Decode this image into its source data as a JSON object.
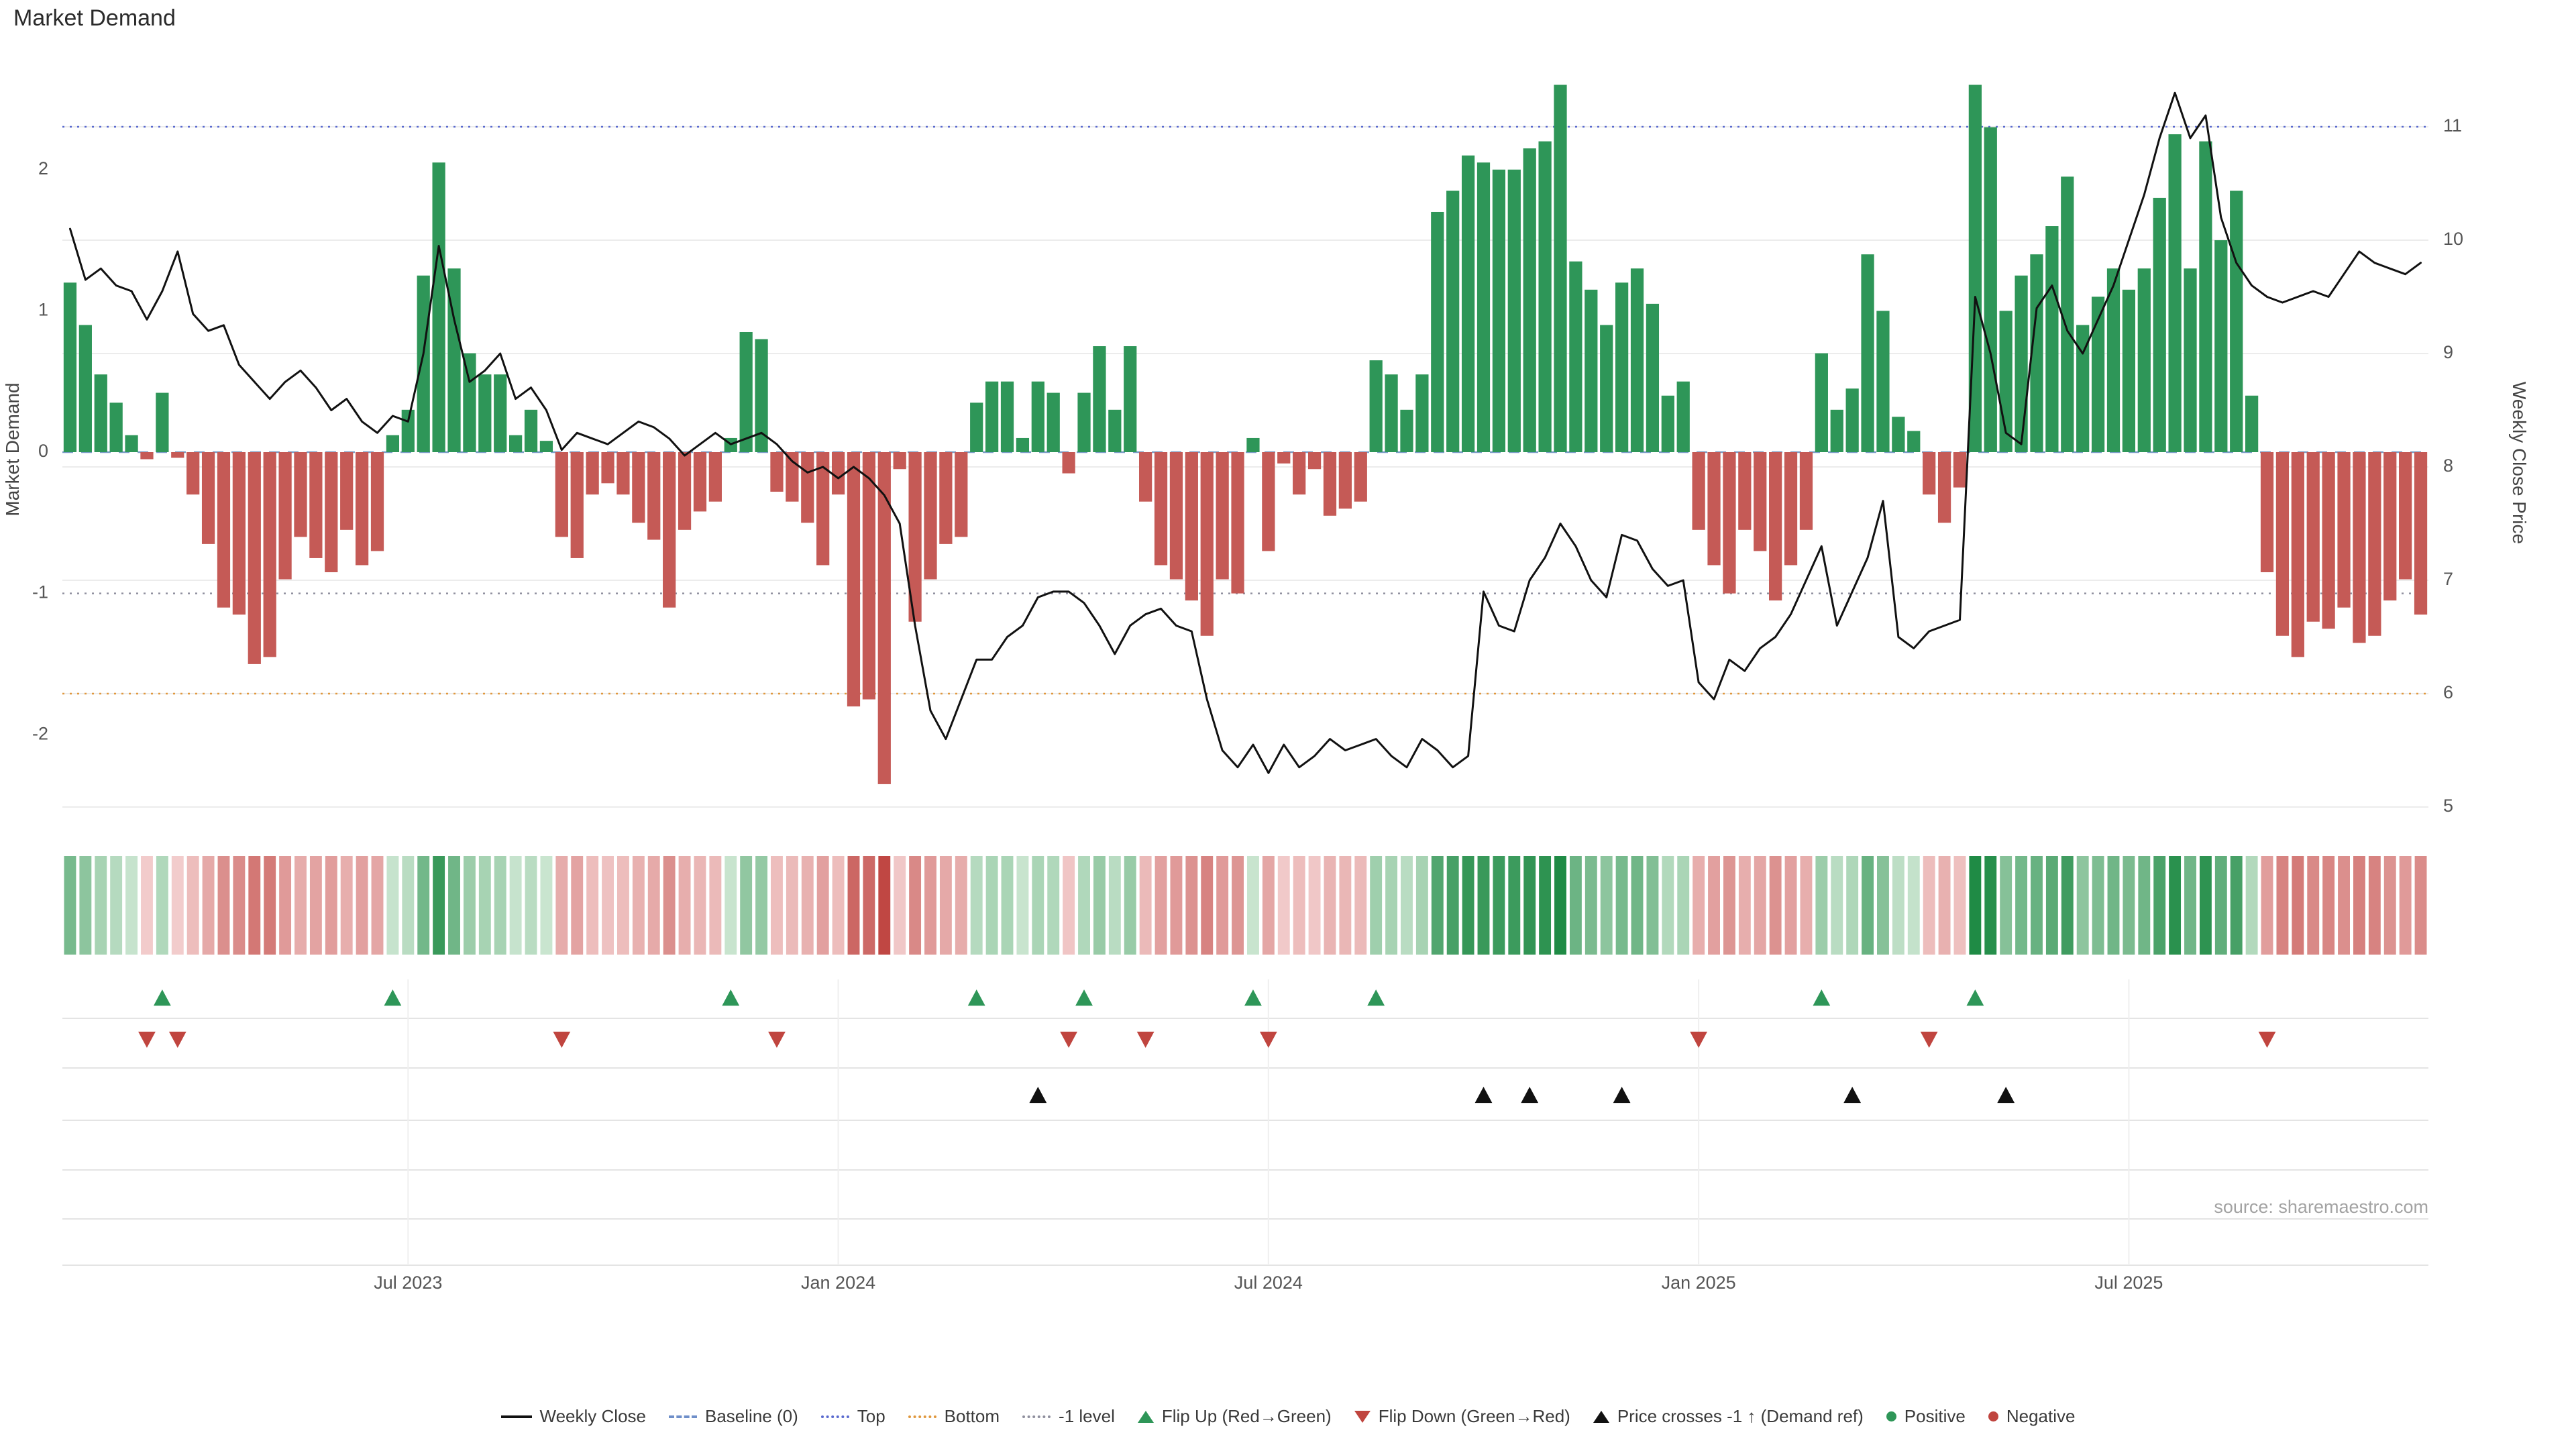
{
  "title": "Market Demand",
  "source": "source: sharemaestro.com",
  "axes": {
    "left_label": "Market Demand",
    "right_label": "Weekly Close Price",
    "left_ticks": [
      2,
      1,
      0,
      -1,
      -2
    ],
    "right_ticks": [
      11,
      10,
      9,
      8,
      7,
      6,
      5
    ],
    "x_ticks": [
      {
        "label": "Jul 2023",
        "index": 22.5
      },
      {
        "label": "Jan 2024",
        "index": 50.5
      },
      {
        "label": "Jul 2024",
        "index": 78.5
      },
      {
        "label": "Jan 2025",
        "index": 106.5
      },
      {
        "label": "Jul 2025",
        "index": 134.5
      }
    ]
  },
  "colors": {
    "positive": "#2e9658",
    "positive_dark": "#1f8b45",
    "positive_light": "#cfe8d4",
    "negative": "#c55a56",
    "negative_dark": "#bf4440",
    "negative_light": "#f3cece",
    "price_line": "#111111",
    "baseline": "#7a9cc6",
    "top_line": "#5a6acf",
    "bottom_line": "#e0983e",
    "minus_one_line": "#8f8f9e",
    "grid": "#ececec"
  },
  "chart_data": {
    "type": "bar",
    "title": "Market Demand",
    "x_unit": "weekly",
    "left_axis_range": [
      -2.75,
      2.8
    ],
    "right_axis_range": [
      4.7,
      11.6
    ],
    "series": [
      {
        "name": "Market Demand",
        "type": "bar",
        "axis": "left",
        "values": [
          1.2,
          0.9,
          0.55,
          0.35,
          0.12,
          -0.05,
          0.42,
          -0.04,
          -0.3,
          -0.65,
          -1.1,
          -1.15,
          -1.5,
          -1.45,
          -0.9,
          -0.6,
          -0.75,
          -0.85,
          -0.55,
          -0.8,
          -0.7,
          0.12,
          0.3,
          1.25,
          2.05,
          1.3,
          0.7,
          0.55,
          0.55,
          0.12,
          0.3,
          0.08,
          -0.6,
          -0.75,
          -0.3,
          -0.22,
          -0.3,
          -0.5,
          -0.62,
          -1.1,
          -0.55,
          -0.42,
          -0.35,
          0.1,
          0.85,
          0.8,
          -0.28,
          -0.35,
          -0.5,
          -0.8,
          -0.3,
          -1.8,
          -1.75,
          -2.35,
          -0.12,
          -1.2,
          -0.9,
          -0.65,
          -0.6,
          0.35,
          0.5,
          0.5,
          0.1,
          0.5,
          0.42,
          -0.15,
          0.42,
          0.75,
          0.3,
          0.75,
          -0.35,
          -0.8,
          -0.9,
          -1.05,
          -1.3,
          -0.9,
          -1.0,
          0.1,
          -0.7,
          -0.08,
          -0.3,
          -0.12,
          -0.45,
          -0.4,
          -0.35,
          0.65,
          0.55,
          0.3,
          0.55,
          1.7,
          1.85,
          2.1,
          2.05,
          2.0,
          2.0,
          2.15,
          2.2,
          2.6,
          1.35,
          1.15,
          0.9,
          1.2,
          1.3,
          1.05,
          0.4,
          0.5,
          -0.55,
          -0.8,
          -1.0,
          -0.55,
          -0.7,
          -1.05,
          -0.8,
          -0.55,
          0.7,
          0.3,
          0.45,
          1.4,
          1.0,
          0.25,
          0.15,
          -0.3,
          -0.5,
          -0.25,
          2.6,
          2.3,
          1.0,
          1.25,
          1.4,
          1.6,
          1.95,
          0.9,
          1.1,
          1.3,
          1.15,
          1.3,
          1.8,
          2.25,
          1.3,
          2.2,
          1.5,
          1.85,
          0.4,
          -0.85,
          -1.3,
          -1.45,
          -1.2,
          -1.25,
          -1.1,
          -1.35,
          -1.3,
          -1.05,
          -0.9,
          -1.15
        ]
      },
      {
        "name": "Weekly Close",
        "type": "line",
        "axis": "right",
        "values": [
          10.1,
          9.65,
          9.75,
          9.6,
          9.55,
          9.3,
          9.55,
          9.9,
          9.35,
          9.2,
          9.25,
          8.9,
          8.75,
          8.6,
          8.75,
          8.85,
          8.7,
          8.5,
          8.6,
          8.4,
          8.3,
          8.45,
          8.4,
          9.0,
          9.95,
          9.3,
          8.75,
          8.85,
          9.0,
          8.6,
          8.7,
          8.5,
          8.15,
          8.3,
          8.25,
          8.2,
          8.3,
          8.4,
          8.35,
          8.25,
          8.1,
          8.2,
          8.3,
          8.2,
          8.25,
          8.3,
          8.2,
          8.05,
          7.95,
          8.0,
          7.9,
          8.0,
          7.9,
          7.75,
          7.5,
          6.6,
          5.85,
          5.6,
          5.95,
          6.3,
          6.3,
          6.5,
          6.6,
          6.85,
          6.9,
          6.9,
          6.8,
          6.6,
          6.35,
          6.6,
          6.7,
          6.75,
          6.6,
          6.55,
          5.95,
          5.5,
          5.35,
          5.55,
          5.3,
          5.55,
          5.35,
          5.45,
          5.6,
          5.5,
          5.55,
          5.6,
          5.45,
          5.35,
          5.6,
          5.5,
          5.35,
          5.45,
          6.9,
          6.6,
          6.55,
          7.0,
          7.2,
          7.5,
          7.3,
          7.0,
          6.85,
          7.4,
          7.35,
          7.1,
          6.95,
          7.0,
          6.1,
          5.95,
          6.3,
          6.2,
          6.4,
          6.5,
          6.7,
          7.0,
          7.3,
          6.6,
          6.9,
          7.2,
          7.7,
          6.5,
          6.4,
          6.55,
          6.6,
          6.65,
          9.5,
          9.0,
          8.3,
          8.2,
          9.4,
          9.6,
          9.2,
          9.0,
          9.3,
          9.6,
          10.0,
          10.4,
          10.9,
          11.3,
          10.9,
          11.1,
          10.2,
          9.8,
          9.6,
          9.5,
          9.45,
          9.5,
          9.55,
          9.5,
          9.7,
          9.9,
          9.8,
          9.75,
          9.7,
          9.8
        ]
      }
    ],
    "reference_lines": [
      {
        "name": "Baseline (0)",
        "axis": "left",
        "value": 0,
        "style": "dashed",
        "color": "#7a9cc6"
      },
      {
        "name": "Top",
        "axis": "right",
        "value": 11,
        "style": "dotted",
        "color": "#5a6acf"
      },
      {
        "name": "Bottom",
        "axis": "right",
        "value": 6,
        "style": "dotted",
        "color": "#e0983e"
      },
      {
        "name": "-1 level",
        "axis": "left",
        "value": -1,
        "style": "dotted",
        "color": "#8f8f9e"
      }
    ],
    "markers": {
      "flip_up_indices": [
        6,
        21,
        43,
        59,
        66,
        77,
        85,
        114,
        124
      ],
      "flip_down_indices": [
        5,
        7,
        32,
        46,
        65,
        70,
        78,
        106,
        121,
        143
      ],
      "price_cross_indices": [
        63,
        92,
        95,
        101,
        116,
        126
      ]
    },
    "heatmap": {
      "note": "colored by Market Demand sign and magnitude",
      "source_series": "Market Demand"
    }
  },
  "legend": {
    "items": [
      {
        "key": "weekly_close",
        "label": "Weekly Close"
      },
      {
        "key": "baseline",
        "label": "Baseline (0)"
      },
      {
        "key": "top",
        "label": "Top"
      },
      {
        "key": "bottom",
        "label": "Bottom"
      },
      {
        "key": "minus_one",
        "label": "-1 level"
      },
      {
        "key": "flip_up",
        "label": "Flip Up (Red→Green)"
      },
      {
        "key": "flip_down",
        "label": "Flip Down (Green→Red)"
      },
      {
        "key": "price_cross",
        "label": "Price crosses -1 ↑ (Demand ref)"
      },
      {
        "key": "positive",
        "label": "Positive"
      },
      {
        "key": "negative",
        "label": "Negative"
      }
    ]
  }
}
